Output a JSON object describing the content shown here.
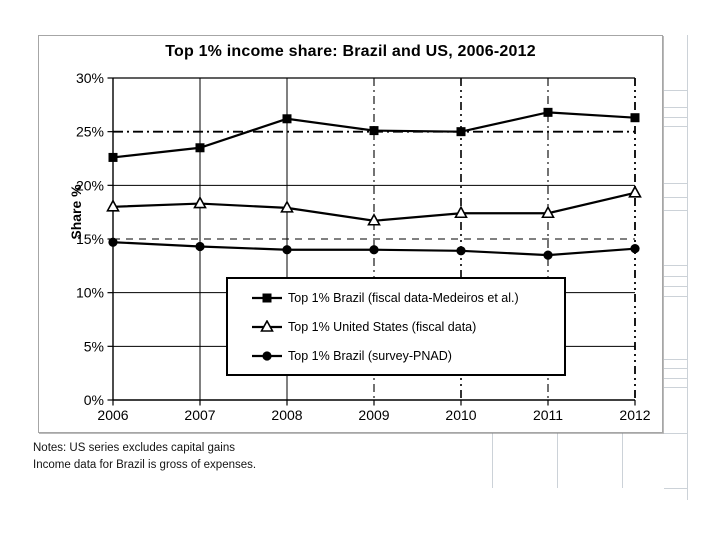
{
  "chart_data": {
    "type": "line",
    "title": "Top 1% income share: Brazil and US, 2006-2012",
    "xlabel": "",
    "ylabel": "Share %",
    "categories": [
      "2006",
      "2007",
      "2008",
      "2009",
      "2010",
      "2011",
      "2012"
    ],
    "series": [
      {
        "name": "Top 1% Brazil (fiscal data-Medeiros et al.)",
        "marker": "filled-square",
        "values": [
          22.6,
          23.5,
          26.2,
          25.1,
          25.0,
          26.8,
          26.3
        ]
      },
      {
        "name": "Top 1% United States (fiscal data)",
        "marker": "open-triangle",
        "values": [
          18.0,
          18.3,
          17.9,
          16.7,
          17.4,
          17.4,
          19.3
        ]
      },
      {
        "name": "Top 1% Brazil (survey-PNAD)",
        "marker": "filled-circle",
        "values": [
          14.7,
          14.3,
          14.0,
          14.0,
          13.9,
          13.5,
          14.1
        ]
      }
    ],
    "ylim": [
      0,
      30
    ],
    "yticks": [
      "0%",
      "5%",
      "10%",
      "15%",
      "20%",
      "25%",
      "30%"
    ],
    "grid": true,
    "legend_position": "inside-lower-center-box",
    "series_color": "#000000"
  },
  "notes": [
    "Notes: US series excludes capital gains",
    "Income data for Brazil is gross of expenses."
  ],
  "colors": {
    "series": "#000000",
    "plot_background": "#ffffff",
    "frame_border": "#a6a6a6",
    "sheet_grid": "#ccd2d8"
  }
}
